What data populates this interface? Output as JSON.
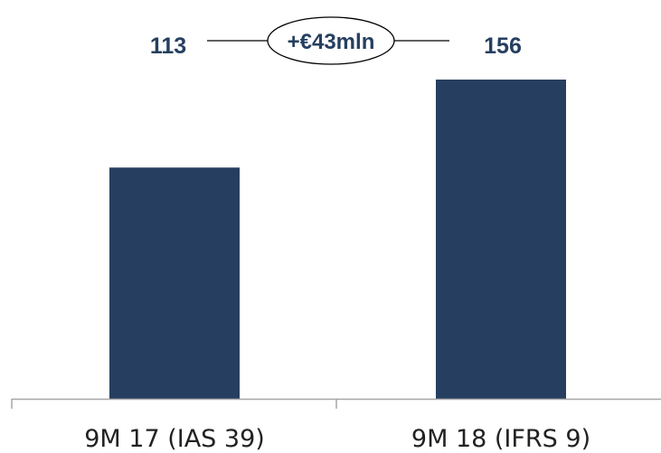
{
  "chart_data": {
    "type": "bar",
    "categories": [
      "9M 17 (IAS 39)",
      "9M 18 (IFRS 9)"
    ],
    "values": [
      113,
      156
    ],
    "value_labels": [
      "113",
      "156"
    ],
    "annotation": "+€43mln",
    "bar_color": "#263f60",
    "title": "",
    "xlabel": "",
    "ylabel": "",
    "ylim": [
      0,
      156
    ],
    "grid": false,
    "legend": "none"
  }
}
